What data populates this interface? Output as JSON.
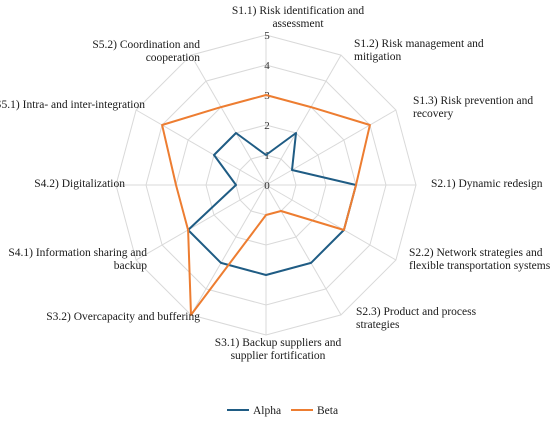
{
  "chart_data": {
    "type": "radar",
    "categories": [
      "S1.1) Risk identification and assessment",
      "S1.2) Risk management and mitigation",
      "S1.3) Risk prevention and recovery",
      "S2.1) Dynamic redesign",
      "S2.2) Network strategies and flexible transportation systems",
      "S2.3) Product and process strategies",
      "S3.1) Backup suppliers and supplier fortification",
      "S3.2) Overcapacity and buffering",
      "S4.1) Information sharing and backup",
      "S4.2) Digitalization",
      "S5.1) Intra- and inter-integration",
      "S5.2) Coordination and cooperation"
    ],
    "series": [
      {
        "name": "Alpha",
        "values": [
          1,
          2,
          1,
          3,
          3,
          3,
          3,
          3,
          3,
          1,
          2,
          2
        ]
      },
      {
        "name": "Beta",
        "values": [
          3,
          3,
          4,
          3,
          3,
          1,
          1,
          5,
          3,
          3,
          4,
          3
        ]
      }
    ],
    "rlim": [
      0,
      5
    ],
    "ticks": [
      "0",
      "1",
      "2",
      "3",
      "4",
      "5"
    ],
    "grid": true,
    "legend_position": "bottom",
    "colors": {
      "Alpha": "#1f5c84",
      "Beta": "#ed7d31",
      "grid": "#d9d9d9"
    }
  }
}
